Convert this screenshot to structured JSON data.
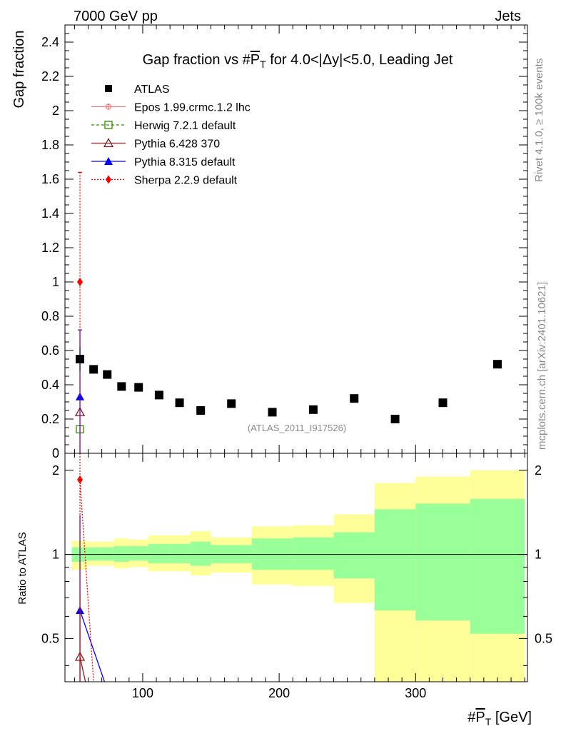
{
  "header": {
    "left": "7000 GeV pp",
    "right": "Jets"
  },
  "side_text": {
    "rivet": "Rivet 4.1.0, ≥ 100k events",
    "mcplots": "mcplots.cern.ch [arXiv:2401.10621]"
  },
  "colors": {
    "atlas": "#000000",
    "epos": "#f08080",
    "herwig": "#2e8b00",
    "pythia6": "#8b1a1a",
    "pythia8": "#0000ff",
    "sherpa": "#ff0000",
    "band_yellow": "#ffff99",
    "band_green": "#99ff99"
  },
  "chart_data": [
    {
      "type": "scatter",
      "title": "Gap fraction vs #P̅T for 4.0<|Δy|<5.0, Leading Jet",
      "title_parts": {
        "pre": "Gap fraction vs #",
        "p": "P",
        "t": "T",
        "post": " for 4.0<|Δy|<5.0, Leading Jet"
      },
      "ylabel": "Gap fraction",
      "xlim": [
        43,
        382
      ],
      "ylim": [
        0,
        2.5
      ],
      "yticks": [
        "0",
        "0.2",
        "0.4",
        "0.6",
        "0.8",
        "1",
        "1.2",
        "1.4",
        "1.6",
        "1.8",
        "2",
        "2.2",
        "2.4"
      ],
      "watermark": "(ATLAS_2011_I917526)",
      "legend_position": "top-left",
      "series": [
        {
          "key": "atlas",
          "name": "ATLAS",
          "marker": "square",
          "x": [
            54,
            64,
            74,
            84.5,
            97,
            112,
            127,
            142.5,
            165,
            195,
            225,
            255,
            285,
            320,
            360
          ],
          "y": [
            0.55,
            0.49,
            0.46,
            0.39,
            0.385,
            0.34,
            0.295,
            0.25,
            0.29,
            0.24,
            0.255,
            0.32,
            0.2,
            0.295,
            0.52
          ]
        },
        {
          "key": "epos",
          "name": "Epos 1.99.crmc.1.2 lhc",
          "marker": "cross",
          "x": [],
          "y": []
        },
        {
          "key": "herwig",
          "name": "Herwig 7.2.1 default",
          "marker": "open-square",
          "x": [
            54
          ],
          "y": [
            0.14
          ]
        },
        {
          "key": "pythia6",
          "name": "Pythia 6.428 370",
          "marker": "open-triangle",
          "x": [
            54
          ],
          "y": [
            0.24
          ]
        },
        {
          "key": "pythia8",
          "name": "Pythia 8.315 default",
          "marker": "triangle",
          "x": [
            54
          ],
          "y": [
            0.33
          ],
          "err_up": [
            0.72
          ],
          "err_down": [
            0
          ]
        },
        {
          "key": "sherpa",
          "name": "Sherpa 2.2.9 default",
          "marker": "diamond",
          "x": [
            54
          ],
          "y": [
            1.0
          ],
          "err_up": [
            1.64
          ],
          "err_down": [
            0
          ]
        }
      ]
    },
    {
      "type": "line",
      "ylabel": "Ratio to ATLAS",
      "xlabel_parts": {
        "pre": "#",
        "p": "P",
        "t": "T",
        "post": " [GeV]"
      },
      "xlim": [
        43,
        382
      ],
      "ylim": [
        0.35,
        2.3
      ],
      "xticks": [
        "100",
        "200",
        "300"
      ],
      "xtick_values": [
        100,
        200,
        300
      ],
      "yticks": [
        "0.5",
        "1",
        "2"
      ],
      "ytick_values": [
        0.5,
        1,
        2
      ],
      "bins": [
        {
          "lo": 48,
          "hi": 59,
          "y_lo": 0.88,
          "y_hi": 1.12,
          "g_lo": 0.94,
          "g_hi": 1.06
        },
        {
          "lo": 59,
          "hi": 69,
          "y_lo": 0.91,
          "y_hi": 1.11,
          "g_lo": 0.95,
          "g_hi": 1.06
        },
        {
          "lo": 69,
          "hi": 79,
          "y_lo": 0.91,
          "y_hi": 1.11,
          "g_lo": 0.95,
          "g_hi": 1.06
        },
        {
          "lo": 79,
          "hi": 90,
          "y_lo": 0.89,
          "y_hi": 1.14,
          "g_lo": 0.94,
          "g_hi": 1.07
        },
        {
          "lo": 90,
          "hi": 104,
          "y_lo": 0.9,
          "y_hi": 1.13,
          "g_lo": 0.95,
          "g_hi": 1.07
        },
        {
          "lo": 104,
          "hi": 120,
          "y_lo": 0.87,
          "y_hi": 1.17,
          "g_lo": 0.93,
          "g_hi": 1.09
        },
        {
          "lo": 120,
          "hi": 135,
          "y_lo": 0.87,
          "y_hi": 1.17,
          "g_lo": 0.93,
          "g_hi": 1.09
        },
        {
          "lo": 135,
          "hi": 150,
          "y_lo": 0.84,
          "y_hi": 1.21,
          "g_lo": 0.91,
          "g_hi": 1.11
        },
        {
          "lo": 150,
          "hi": 180,
          "y_lo": 0.86,
          "y_hi": 1.15,
          "g_lo": 0.93,
          "g_hi": 1.08
        },
        {
          "lo": 180,
          "hi": 210,
          "y_lo": 0.78,
          "y_hi": 1.26,
          "g_lo": 0.88,
          "g_hi": 1.14
        },
        {
          "lo": 210,
          "hi": 240,
          "y_lo": 0.77,
          "y_hi": 1.27,
          "g_lo": 0.88,
          "g_hi": 1.15
        },
        {
          "lo": 240,
          "hi": 270,
          "y_lo": 0.67,
          "y_hi": 1.39,
          "g_lo": 0.82,
          "g_hi": 1.2
        },
        {
          "lo": 270,
          "hi": 300,
          "y_lo": 0.35,
          "y_hi": 1.8,
          "g_lo": 0.63,
          "g_hi": 1.45
        },
        {
          "lo": 300,
          "hi": 340,
          "y_lo": 0.35,
          "y_hi": 1.9,
          "g_lo": 0.58,
          "g_hi": 1.52
        },
        {
          "lo": 340,
          "hi": 380,
          "y_lo": 0.35,
          "y_hi": 2.0,
          "g_lo": 0.52,
          "g_hi": 1.58
        }
      ],
      "series": [
        {
          "key": "pythia8",
          "name": "Pythia 8.315 default",
          "marker": "triangle",
          "x": [
            54
          ],
          "y": [
            0.63
          ],
          "err_up": [
            1.38
          ],
          "err_down": [
            0.35
          ],
          "line_x": [
            54,
            72
          ],
          "line_y": [
            0.63,
            0.35
          ]
        },
        {
          "key": "pythia6",
          "name": "Pythia 6.428 370",
          "marker": "open-triangle",
          "x": [
            54
          ],
          "y": [
            0.43
          ],
          "err_up": [
            0.72
          ],
          "err_down": [
            0.35
          ],
          "line_x": [
            54,
            58
          ],
          "line_y": [
            0.43,
            0.35
          ]
        },
        {
          "key": "sherpa",
          "name": "Sherpa 2.2.9 default",
          "marker": "diamond",
          "x": [
            54
          ],
          "y": [
            1.85
          ],
          "err_up": [
            2.3
          ],
          "err_down": [
            0.35
          ],
          "line_x": [
            54,
            64
          ],
          "line_y": [
            1.85,
            0.35
          ]
        }
      ]
    }
  ]
}
